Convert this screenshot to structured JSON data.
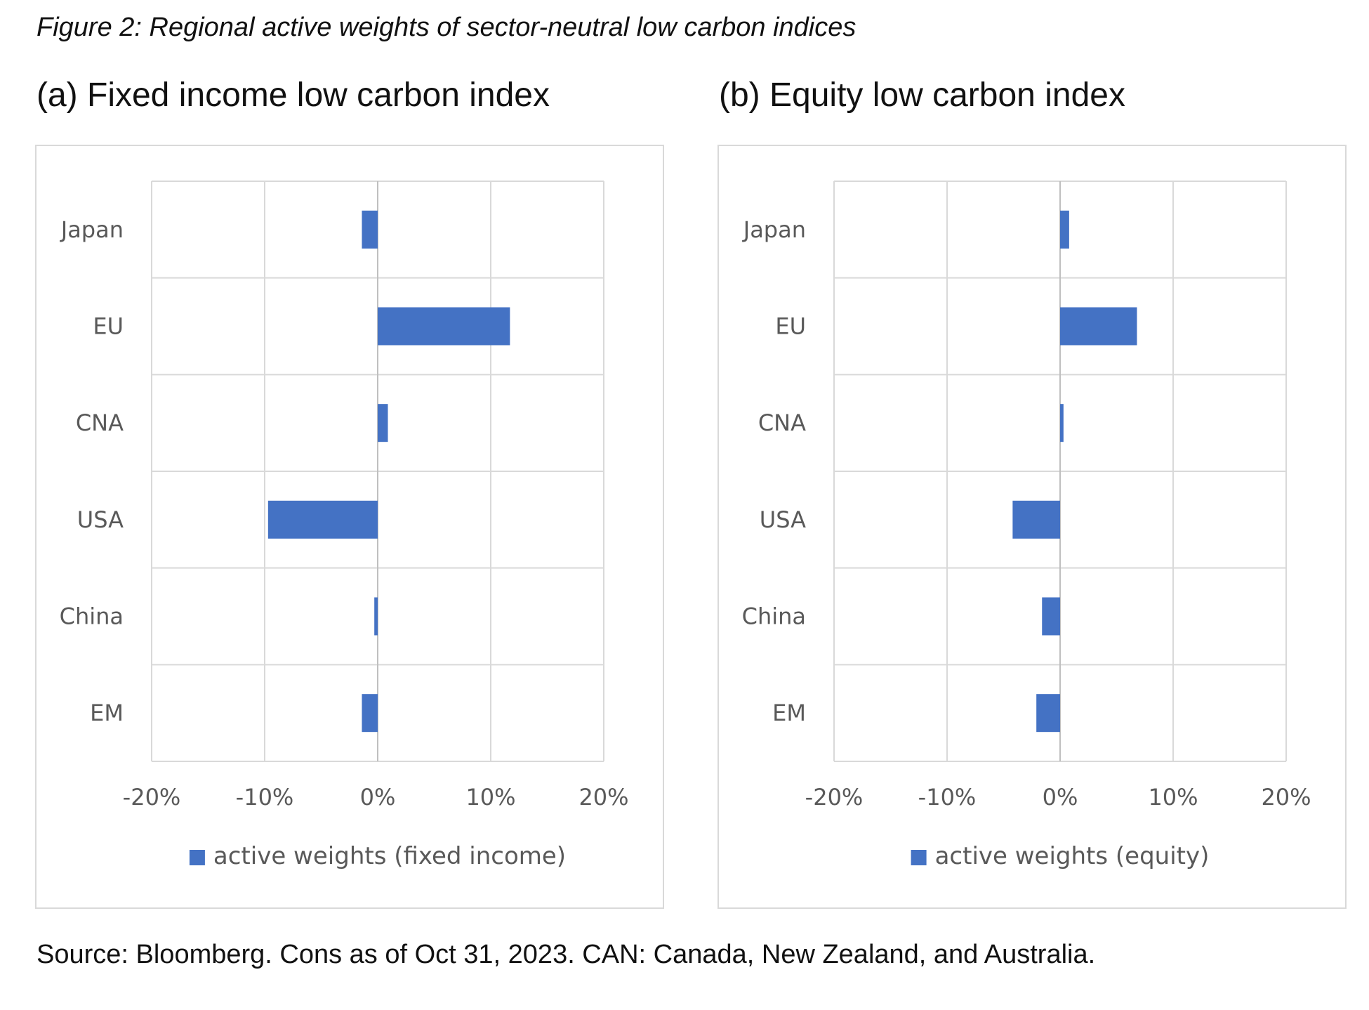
{
  "figure_title": "Figure 2: Regional active weights of sector-neutral low carbon indices",
  "source_note": "Source: Bloomberg. Cons as of Oct 31, 2023. CAN: Canada, New Zealand, and Australia.",
  "colors": {
    "bar": "#4472C4",
    "grid": "#d9d9d9",
    "axis_zero": "#bfbfbf",
    "text": "#595959"
  },
  "chart_data": [
    {
      "type": "bar",
      "orientation": "horizontal",
      "title": "(a) Fixed income low carbon index",
      "categories": [
        "Japan",
        "EU",
        "CNA",
        "USA",
        "China",
        "EM"
      ],
      "series": [
        {
          "name": "active weights (fixed income)",
          "values": [
            -1.4,
            11.7,
            0.9,
            -9.7,
            -0.3,
            -1.4
          ]
        }
      ],
      "xlim": [
        -20,
        20
      ],
      "xticks": [
        -20,
        -10,
        0,
        10,
        20
      ],
      "xtick_labels": [
        "-20%",
        "-10%",
        "0%",
        "10%",
        "20%"
      ],
      "grid": true,
      "legend_position": "bottom"
    },
    {
      "type": "bar",
      "orientation": "horizontal",
      "title": "(b) Equity low carbon index",
      "categories": [
        "Japan",
        "EU",
        "CNA",
        "USA",
        "China",
        "EM"
      ],
      "series": [
        {
          "name": "active weights (equity)",
          "values": [
            0.8,
            6.8,
            0.3,
            -4.2,
            -1.6,
            -2.1
          ]
        }
      ],
      "xlim": [
        -20,
        20
      ],
      "xticks": [
        -20,
        -10,
        0,
        10,
        20
      ],
      "xtick_labels": [
        "-20%",
        "-10%",
        "0%",
        "10%",
        "20%"
      ],
      "grid": true,
      "legend_position": "bottom"
    }
  ]
}
